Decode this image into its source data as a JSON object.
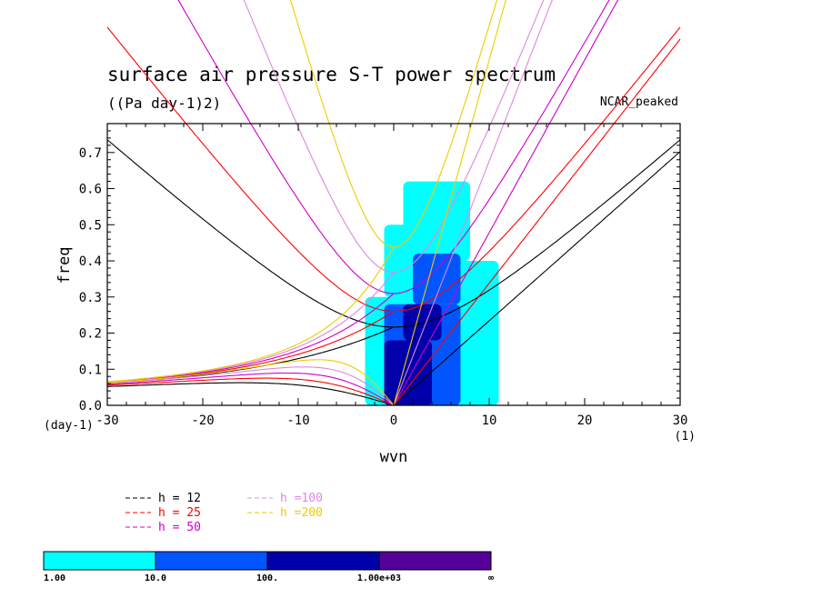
{
  "chart_data": {
    "type": "heatmap",
    "title": "surface air pressure S-T power spectrum",
    "subtitle": "((Pa day-1)2)",
    "corner_label": "NCAR_peaked",
    "xlabel": "wvn",
    "ylabel": "freq",
    "x_units": "(1)",
    "y_units": "(day-1)",
    "xlim": [
      -30,
      30
    ],
    "ylim": [
      0.0,
      0.78
    ],
    "xticks": [
      -30,
      -20,
      -10,
      0,
      10,
      20,
      30
    ],
    "xtick_labels": [
      "-30",
      "-20",
      "-10",
      "0",
      "10",
      "20",
      "30"
    ],
    "yticks": [
      0.0,
      0.1,
      0.2,
      0.3,
      0.4,
      0.5,
      0.6,
      0.7
    ],
    "ytick_labels": [
      "0.0",
      "0.1",
      "0.2",
      "0.3",
      "0.4",
      "0.5",
      "0.6",
      "0.7"
    ],
    "dispersion_curves": [
      {
        "label": "h = 12",
        "h": 12,
        "color": "#000000"
      },
      {
        "label": "h = 25",
        "h": 25,
        "color": "#ff0000"
      },
      {
        "label": "h = 50",
        "h": 50,
        "color": "#cc00cc"
      },
      {
        "label": "h =100",
        "h": 100,
        "color": "#dd88dd"
      },
      {
        "label": "h =200",
        "h": 200,
        "color": "#eecc00"
      }
    ],
    "colorbar": {
      "colors": [
        "#00ffff",
        "#0055ff",
        "#0000aa",
        "#550099"
      ],
      "labels": [
        "1.00",
        "10.0",
        "100.",
        "1.00e+03",
        "∞"
      ]
    },
    "power_regions": [
      {
        "level": 0,
        "x": [
          -3,
          2
        ],
        "y": [
          0.0,
          0.3
        ]
      },
      {
        "level": 0,
        "x": [
          -1,
          6
        ],
        "y": [
          0.3,
          0.5
        ]
      },
      {
        "level": 0,
        "x": [
          0,
          11
        ],
        "y": [
          0.0,
          0.4
        ]
      },
      {
        "level": 0,
        "x": [
          1,
          8
        ],
        "y": [
          0.4,
          0.62
        ]
      },
      {
        "level": 1,
        "x": [
          -1,
          7
        ],
        "y": [
          0.0,
          0.28
        ]
      },
      {
        "level": 1,
        "x": [
          2,
          7
        ],
        "y": [
          0.28,
          0.42
        ]
      },
      {
        "level": 2,
        "x": [
          -1,
          4
        ],
        "y": [
          0.0,
          0.18
        ]
      },
      {
        "level": 2,
        "x": [
          1,
          5
        ],
        "y": [
          0.18,
          0.28
        ]
      }
    ]
  }
}
